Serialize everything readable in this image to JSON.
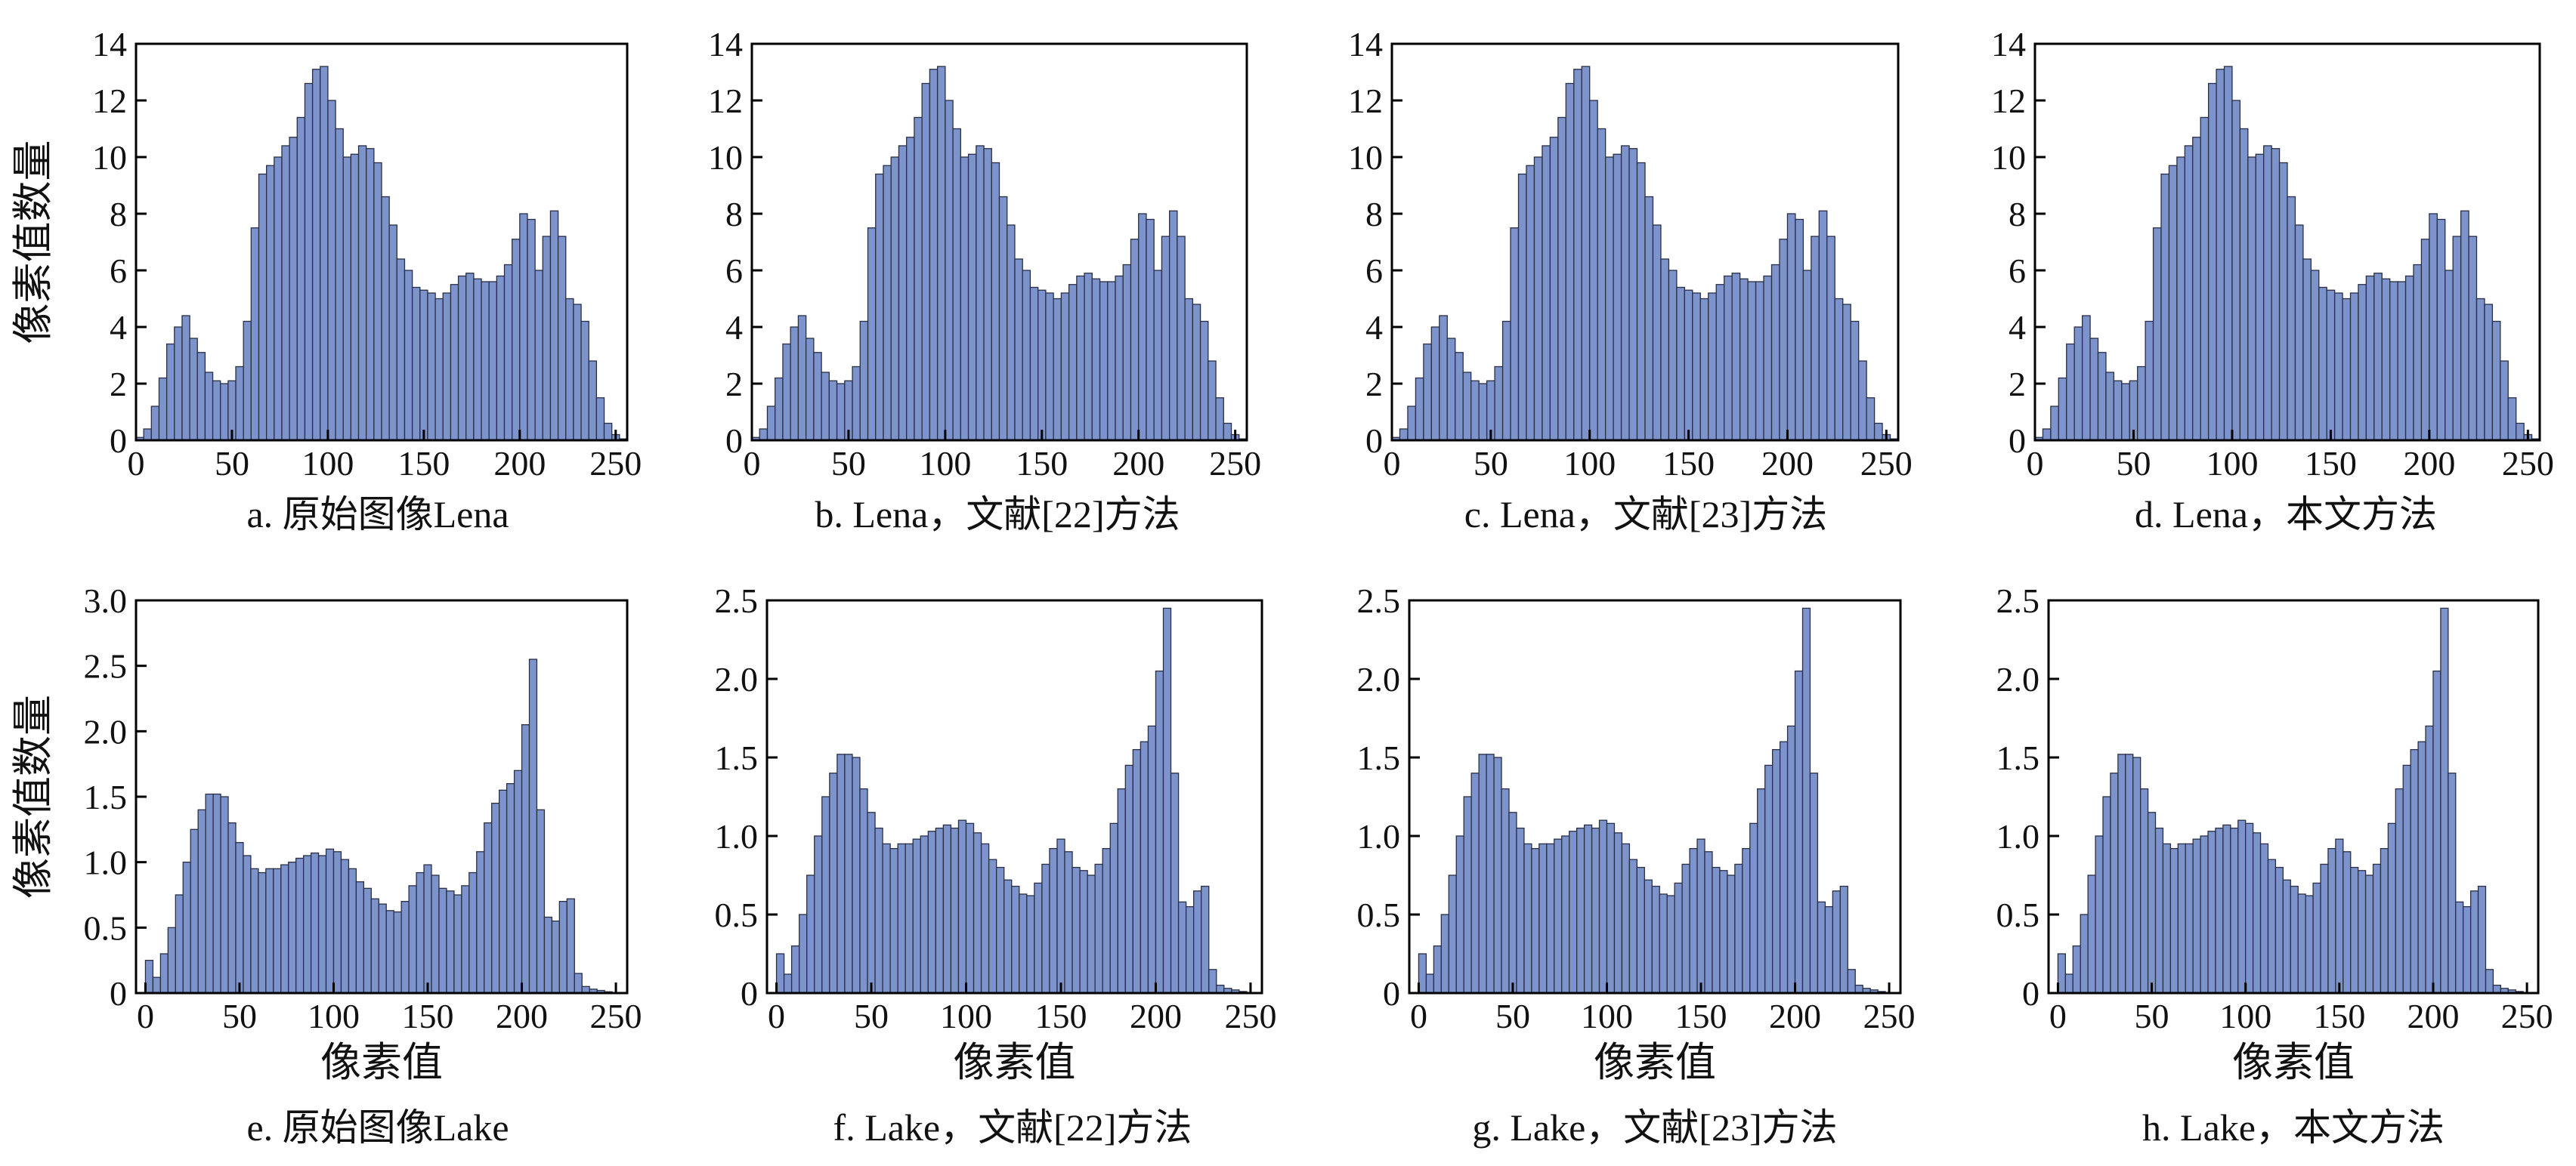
{
  "figure": {
    "background": "#ffffff",
    "bar_fill": "#7c93cc",
    "bar_stroke": "#2a2f45",
    "axis_color": "#000000"
  },
  "chart_data": [
    {
      "type": "bar",
      "panel": "a",
      "caption": "a. 原始图像Lena",
      "xlabel": "",
      "ylabel": "像素值数量",
      "xlim": [
        0,
        256
      ],
      "ylim": [
        0,
        14
      ],
      "xticks": [
        0,
        50,
        100,
        150,
        200,
        250
      ],
      "yticks": [
        0,
        2,
        4,
        6,
        8,
        10,
        12,
        14
      ],
      "ytick_labels": [
        "0",
        "2",
        "4",
        "6",
        "8",
        "10",
        "12",
        "14"
      ],
      "x": [
        2,
        6,
        10,
        14,
        18,
        22,
        26,
        30,
        34,
        38,
        42,
        46,
        50,
        54,
        58,
        62,
        66,
        70,
        74,
        78,
        82,
        86,
        90,
        94,
        98,
        102,
        106,
        110,
        114,
        118,
        122,
        126,
        130,
        134,
        138,
        142,
        146,
        150,
        154,
        158,
        162,
        166,
        170,
        174,
        178,
        182,
        186,
        190,
        194,
        198,
        202,
        206,
        210,
        214,
        218,
        222,
        226,
        230,
        234,
        238,
        242,
        246,
        250,
        254
      ],
      "values": [
        0.1,
        0.4,
        1.2,
        2.2,
        3.4,
        4.0,
        4.4,
        3.6,
        3.1,
        2.4,
        2.1,
        2.0,
        2.1,
        2.6,
        4.2,
        7.5,
        9.4,
        9.7,
        10.0,
        10.4,
        10.7,
        11.4,
        12.6,
        13.1,
        13.2,
        12.0,
        11.0,
        10.0,
        10.1,
        10.4,
        10.3,
        9.8,
        8.6,
        7.6,
        6.4,
        6.0,
        5.4,
        5.3,
        5.2,
        5.0,
        5.2,
        5.5,
        5.8,
        5.9,
        5.7,
        5.6,
        5.6,
        5.8,
        6.2,
        7.1,
        8.0,
        7.8,
        6.0,
        7.2,
        8.1,
        7.2,
        5.0,
        4.8,
        4.2,
        2.8,
        1.5,
        0.6,
        0.2,
        0.05
      ]
    },
    {
      "type": "bar",
      "panel": "b",
      "caption": "b. Lena，文献[22]方法",
      "xlabel": "",
      "ylabel": "",
      "xlim": [
        0,
        256
      ],
      "ylim": [
        0,
        14
      ],
      "xticks": [
        0,
        50,
        100,
        150,
        200,
        250
      ],
      "yticks": [
        0,
        2,
        4,
        6,
        8,
        10,
        12,
        14
      ],
      "ytick_labels": [
        "0",
        "2",
        "4",
        "6",
        "8",
        "10",
        "12",
        "14"
      ],
      "x": [
        2,
        6,
        10,
        14,
        18,
        22,
        26,
        30,
        34,
        38,
        42,
        46,
        50,
        54,
        58,
        62,
        66,
        70,
        74,
        78,
        82,
        86,
        90,
        94,
        98,
        102,
        106,
        110,
        114,
        118,
        122,
        126,
        130,
        134,
        138,
        142,
        146,
        150,
        154,
        158,
        162,
        166,
        170,
        174,
        178,
        182,
        186,
        190,
        194,
        198,
        202,
        206,
        210,
        214,
        218,
        222,
        226,
        230,
        234,
        238,
        242,
        246,
        250,
        254
      ],
      "values": [
        0.1,
        0.4,
        1.2,
        2.2,
        3.4,
        4.0,
        4.4,
        3.6,
        3.1,
        2.4,
        2.1,
        2.0,
        2.1,
        2.6,
        4.2,
        7.5,
        9.4,
        9.7,
        10.0,
        10.4,
        10.7,
        11.4,
        12.6,
        13.1,
        13.2,
        12.0,
        11.0,
        10.0,
        10.1,
        10.4,
        10.3,
        9.8,
        8.6,
        7.6,
        6.4,
        6.0,
        5.4,
        5.3,
        5.2,
        5.0,
        5.2,
        5.5,
        5.8,
        5.9,
        5.7,
        5.6,
        5.6,
        5.8,
        6.2,
        7.1,
        8.0,
        7.8,
        6.0,
        7.2,
        8.1,
        7.2,
        5.0,
        4.8,
        4.2,
        2.8,
        1.5,
        0.6,
        0.2,
        0.05
      ]
    },
    {
      "type": "bar",
      "panel": "c",
      "caption": "c. Lena，文献[23]方法",
      "xlabel": "",
      "ylabel": "",
      "xlim": [
        0,
        256
      ],
      "ylim": [
        0,
        14
      ],
      "xticks": [
        0,
        50,
        100,
        150,
        200,
        250
      ],
      "yticks": [
        0,
        2,
        4,
        6,
        8,
        10,
        12,
        14
      ],
      "ytick_labels": [
        "0",
        "2",
        "4",
        "6",
        "8",
        "10",
        "12",
        "14"
      ],
      "x": [
        2,
        6,
        10,
        14,
        18,
        22,
        26,
        30,
        34,
        38,
        42,
        46,
        50,
        54,
        58,
        62,
        66,
        70,
        74,
        78,
        82,
        86,
        90,
        94,
        98,
        102,
        106,
        110,
        114,
        118,
        122,
        126,
        130,
        134,
        138,
        142,
        146,
        150,
        154,
        158,
        162,
        166,
        170,
        174,
        178,
        182,
        186,
        190,
        194,
        198,
        202,
        206,
        210,
        214,
        218,
        222,
        226,
        230,
        234,
        238,
        242,
        246,
        250,
        254
      ],
      "values": [
        0.1,
        0.4,
        1.2,
        2.2,
        3.4,
        4.0,
        4.4,
        3.6,
        3.1,
        2.4,
        2.1,
        2.0,
        2.1,
        2.6,
        4.2,
        7.5,
        9.4,
        9.7,
        10.0,
        10.4,
        10.7,
        11.4,
        12.6,
        13.1,
        13.2,
        12.0,
        11.0,
        10.0,
        10.1,
        10.4,
        10.3,
        9.8,
        8.6,
        7.6,
        6.4,
        6.0,
        5.4,
        5.3,
        5.2,
        5.0,
        5.2,
        5.5,
        5.8,
        5.9,
        5.7,
        5.6,
        5.6,
        5.8,
        6.2,
        7.1,
        8.0,
        7.8,
        6.0,
        7.2,
        8.1,
        7.2,
        5.0,
        4.8,
        4.2,
        2.8,
        1.5,
        0.6,
        0.2,
        0.05
      ]
    },
    {
      "type": "bar",
      "panel": "d",
      "caption": "d. Lena，本文方法",
      "xlabel": "",
      "ylabel": "",
      "xlim": [
        0,
        256
      ],
      "ylim": [
        0,
        14
      ],
      "xticks": [
        0,
        50,
        100,
        150,
        200,
        250
      ],
      "yticks": [
        0,
        2,
        4,
        6,
        8,
        10,
        12,
        14
      ],
      "ytick_labels": [
        "0",
        "2",
        "4",
        "6",
        "8",
        "10",
        "12",
        "14"
      ],
      "x": [
        2,
        6,
        10,
        14,
        18,
        22,
        26,
        30,
        34,
        38,
        42,
        46,
        50,
        54,
        58,
        62,
        66,
        70,
        74,
        78,
        82,
        86,
        90,
        94,
        98,
        102,
        106,
        110,
        114,
        118,
        122,
        126,
        130,
        134,
        138,
        142,
        146,
        150,
        154,
        158,
        162,
        166,
        170,
        174,
        178,
        182,
        186,
        190,
        194,
        198,
        202,
        206,
        210,
        214,
        218,
        222,
        226,
        230,
        234,
        238,
        242,
        246,
        250,
        254
      ],
      "values": [
        0.1,
        0.4,
        1.2,
        2.2,
        3.4,
        4.0,
        4.4,
        3.6,
        3.1,
        2.4,
        2.1,
        2.0,
        2.1,
        2.6,
        4.2,
        7.5,
        9.4,
        9.7,
        10.0,
        10.4,
        10.7,
        11.4,
        12.6,
        13.1,
        13.2,
        12.0,
        11.0,
        10.0,
        10.1,
        10.4,
        10.3,
        9.8,
        8.6,
        7.6,
        6.4,
        6.0,
        5.4,
        5.3,
        5.2,
        5.0,
        5.2,
        5.5,
        5.8,
        5.9,
        5.7,
        5.6,
        5.6,
        5.8,
        6.2,
        7.1,
        8.0,
        7.8,
        6.0,
        7.2,
        8.1,
        7.2,
        5.0,
        4.8,
        4.2,
        2.8,
        1.5,
        0.6,
        0.2,
        0.05
      ]
    },
    {
      "type": "bar",
      "panel": "e",
      "caption": "e. 原始图像Lake",
      "xlabel": "像素值",
      "ylabel": "像素值数量",
      "xlim": [
        -5,
        256
      ],
      "ylim": [
        0,
        3.0
      ],
      "xticks": [
        0,
        50,
        100,
        150,
        200,
        250
      ],
      "yticks": [
        0,
        0.5,
        1.0,
        1.5,
        2.0,
        2.5,
        3.0
      ],
      "ytick_labels": [
        "0",
        "0.5",
        "1.0",
        "1.5",
        "2.0",
        "2.5",
        "3.0"
      ],
      "x": [
        2,
        6,
        10,
        14,
        18,
        22,
        26,
        30,
        34,
        38,
        42,
        46,
        50,
        54,
        58,
        62,
        66,
        70,
        74,
        78,
        82,
        86,
        90,
        94,
        98,
        102,
        106,
        110,
        114,
        118,
        122,
        126,
        130,
        134,
        138,
        142,
        146,
        150,
        154,
        158,
        162,
        166,
        170,
        174,
        178,
        182,
        186,
        190,
        194,
        198,
        202,
        206,
        210,
        214,
        218,
        222,
        226,
        230,
        234,
        238,
        242,
        246
      ],
      "values": [
        0.25,
        0.12,
        0.3,
        0.5,
        0.75,
        1.0,
        1.25,
        1.4,
        1.52,
        1.52,
        1.5,
        1.3,
        1.15,
        1.05,
        0.95,
        0.92,
        0.95,
        0.95,
        0.98,
        1.0,
        1.03,
        1.05,
        1.07,
        1.05,
        1.1,
        1.08,
        1.02,
        0.95,
        0.85,
        0.8,
        0.72,
        0.68,
        0.63,
        0.62,
        0.7,
        0.82,
        0.92,
        0.98,
        0.9,
        0.8,
        0.78,
        0.75,
        0.82,
        0.92,
        1.08,
        1.3,
        1.45,
        1.55,
        1.6,
        1.7,
        2.05,
        2.55,
        1.4,
        0.58,
        0.55,
        0.7,
        0.72,
        0.15,
        0.05,
        0.03,
        0.02,
        0.01
      ]
    },
    {
      "type": "bar",
      "panel": "f",
      "caption": "f. Lake，文献[22]方法",
      "xlabel": "像素值",
      "ylabel": "",
      "xlim": [
        -5,
        256
      ],
      "ylim": [
        0,
        2.5
      ],
      "xticks": [
        0,
        50,
        100,
        150,
        200,
        250
      ],
      "yticks": [
        0,
        0.5,
        1.0,
        1.5,
        2.0,
        2.5
      ],
      "ytick_labels": [
        "0",
        "0.5",
        "1.0",
        "1.5",
        "2.0",
        "2.5"
      ],
      "x": [
        2,
        6,
        10,
        14,
        18,
        22,
        26,
        30,
        34,
        38,
        42,
        46,
        50,
        54,
        58,
        62,
        66,
        70,
        74,
        78,
        82,
        86,
        90,
        94,
        98,
        102,
        106,
        110,
        114,
        118,
        122,
        126,
        130,
        134,
        138,
        142,
        146,
        150,
        154,
        158,
        162,
        166,
        170,
        174,
        178,
        182,
        186,
        190,
        194,
        198,
        202,
        206,
        210,
        214,
        218,
        222,
        226,
        230,
        234,
        238,
        242,
        246
      ],
      "values": [
        0.25,
        0.12,
        0.3,
        0.5,
        0.75,
        1.0,
        1.25,
        1.4,
        1.52,
        1.52,
        1.5,
        1.3,
        1.15,
        1.05,
        0.95,
        0.92,
        0.95,
        0.95,
        0.98,
        1.0,
        1.03,
        1.05,
        1.07,
        1.05,
        1.1,
        1.08,
        1.02,
        0.95,
        0.85,
        0.8,
        0.72,
        0.68,
        0.63,
        0.62,
        0.7,
        0.82,
        0.92,
        0.98,
        0.9,
        0.8,
        0.78,
        0.75,
        0.82,
        0.92,
        1.08,
        1.3,
        1.45,
        1.55,
        1.6,
        1.7,
        2.05,
        2.45,
        1.4,
        0.58,
        0.55,
        0.65,
        0.68,
        0.15,
        0.05,
        0.03,
        0.02,
        0.01
      ]
    },
    {
      "type": "bar",
      "panel": "g",
      "caption": "g. Lake，文献[23]方法",
      "xlabel": "像素值",
      "ylabel": "",
      "xlim": [
        -5,
        256
      ],
      "ylim": [
        0,
        2.5
      ],
      "xticks": [
        0,
        50,
        100,
        150,
        200,
        250
      ],
      "yticks": [
        0,
        0.5,
        1.0,
        1.5,
        2.0,
        2.5
      ],
      "ytick_labels": [
        "0",
        "0.5",
        "1.0",
        "1.5",
        "2.0",
        "2.5"
      ],
      "x": [
        2,
        6,
        10,
        14,
        18,
        22,
        26,
        30,
        34,
        38,
        42,
        46,
        50,
        54,
        58,
        62,
        66,
        70,
        74,
        78,
        82,
        86,
        90,
        94,
        98,
        102,
        106,
        110,
        114,
        118,
        122,
        126,
        130,
        134,
        138,
        142,
        146,
        150,
        154,
        158,
        162,
        166,
        170,
        174,
        178,
        182,
        186,
        190,
        194,
        198,
        202,
        206,
        210,
        214,
        218,
        222,
        226,
        230,
        234,
        238,
        242,
        246
      ],
      "values": [
        0.25,
        0.12,
        0.3,
        0.5,
        0.75,
        1.0,
        1.25,
        1.4,
        1.52,
        1.52,
        1.5,
        1.3,
        1.15,
        1.05,
        0.95,
        0.92,
        0.95,
        0.95,
        0.98,
        1.0,
        1.03,
        1.05,
        1.07,
        1.05,
        1.1,
        1.08,
        1.02,
        0.95,
        0.85,
        0.8,
        0.72,
        0.68,
        0.63,
        0.62,
        0.7,
        0.82,
        0.92,
        0.98,
        0.9,
        0.8,
        0.78,
        0.75,
        0.82,
        0.92,
        1.08,
        1.3,
        1.45,
        1.55,
        1.6,
        1.7,
        2.05,
        2.45,
        1.4,
        0.58,
        0.55,
        0.65,
        0.68,
        0.15,
        0.05,
        0.03,
        0.02,
        0.01
      ]
    },
    {
      "type": "bar",
      "panel": "h",
      "caption": "h. Lake，本文方法",
      "xlabel": "像素值",
      "ylabel": "",
      "xlim": [
        -5,
        256
      ],
      "ylim": [
        0,
        2.5
      ],
      "xticks": [
        0,
        50,
        100,
        150,
        200,
        250
      ],
      "yticks": [
        0,
        0.5,
        1.0,
        1.5,
        2.0,
        2.5
      ],
      "ytick_labels": [
        "0",
        "0.5",
        "1.0",
        "1.5",
        "2.0",
        "2.5"
      ],
      "x": [
        2,
        6,
        10,
        14,
        18,
        22,
        26,
        30,
        34,
        38,
        42,
        46,
        50,
        54,
        58,
        62,
        66,
        70,
        74,
        78,
        82,
        86,
        90,
        94,
        98,
        102,
        106,
        110,
        114,
        118,
        122,
        126,
        130,
        134,
        138,
        142,
        146,
        150,
        154,
        158,
        162,
        166,
        170,
        174,
        178,
        182,
        186,
        190,
        194,
        198,
        202,
        206,
        210,
        214,
        218,
        222,
        226,
        230,
        234,
        238,
        242,
        246
      ],
      "values": [
        0.25,
        0.12,
        0.3,
        0.5,
        0.75,
        1.0,
        1.25,
        1.4,
        1.52,
        1.52,
        1.5,
        1.3,
        1.15,
        1.05,
        0.95,
        0.92,
        0.95,
        0.95,
        0.98,
        1.0,
        1.03,
        1.05,
        1.07,
        1.05,
        1.1,
        1.08,
        1.02,
        0.95,
        0.85,
        0.8,
        0.72,
        0.68,
        0.63,
        0.62,
        0.7,
        0.82,
        0.92,
        0.98,
        0.9,
        0.8,
        0.78,
        0.75,
        0.82,
        0.92,
        1.08,
        1.3,
        1.45,
        1.55,
        1.6,
        1.7,
        2.05,
        2.45,
        1.4,
        0.58,
        0.55,
        0.65,
        0.68,
        0.15,
        0.05,
        0.03,
        0.02,
        0.01
      ]
    }
  ]
}
